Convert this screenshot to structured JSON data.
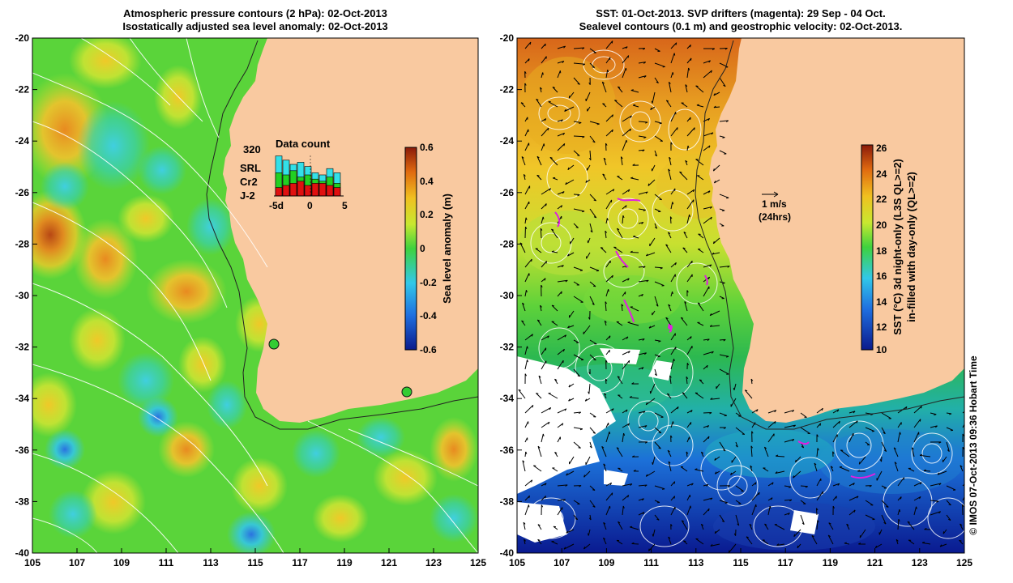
{
  "left_panel": {
    "title_line1": "Atmospheric pressure contours (2 hPa): 02-Oct-2013",
    "title_line2": "Isostatically adjusted sea level anomaly: 02-Oct-2013",
    "colorbar": {
      "label": "Sea level anomaly (m)",
      "ticks": [
        "0.6",
        "0.4",
        "0.2",
        "0",
        "-0.2",
        "-0.4",
        "-0.6"
      ]
    },
    "data_count": {
      "title": "Data count",
      "max_label": "320",
      "legend": [
        {
          "name": "SRL",
          "color": "#33e0e8"
        },
        {
          "name": "Cr2",
          "color": "#22d022"
        },
        {
          "name": "J-2",
          "color": "#e01010"
        }
      ],
      "x_ticks": [
        "-5d",
        "0",
        "5"
      ],
      "bars": [
        {
          "SRL": 0.95,
          "Cr2": 0.55,
          "J2": 0.2
        },
        {
          "SRL": 0.85,
          "Cr2": 0.5,
          "J2": 0.25
        },
        {
          "SRL": 0.75,
          "Cr2": 0.6,
          "J2": 0.3
        },
        {
          "SRL": 0.8,
          "Cr2": 0.45,
          "J2": 0.35
        },
        {
          "SRL": 0.7,
          "Cr2": 0.5,
          "J2": 0.25
        },
        {
          "SRL": 0.55,
          "Cr2": 0.4,
          "J2": 0.3
        },
        {
          "SRL": 0.5,
          "Cr2": 0.35,
          "J2": 0.3
        },
        {
          "SRL": 0.65,
          "Cr2": 0.45,
          "J2": 0.25
        },
        {
          "SRL": 0.55,
          "Cr2": 0.3,
          "J2": 0.2
        }
      ]
    }
  },
  "right_panel": {
    "title_line1": "SST: 01-Oct-2013. SVP drifters (magenta): 29 Sep - 04 Oct.",
    "title_line2": "Sealevel contours (0.1 m) and geostrophic velocity: 02-Oct-2013.",
    "colorbar": {
      "label_line1": "SST (°C) 3d night-only (L3S QL>=2)",
      "label_line2": "in-filled with day-only (QL>=2)",
      "ticks": [
        "26",
        "24",
        "22",
        "20",
        "18",
        "16",
        "14",
        "12",
        "10"
      ]
    },
    "velocity_scale": {
      "line1": "1 m/s",
      "line2": "(24hrs)"
    }
  },
  "axes": {
    "x_ticks": [
      "105",
      "107",
      "109",
      "111",
      "113",
      "115",
      "117",
      "119",
      "121",
      "123",
      "125"
    ],
    "y_ticks": [
      "-20",
      "-22",
      "-24",
      "-26",
      "-28",
      "-30",
      "-32",
      "-34",
      "-36",
      "-38",
      "-40"
    ]
  },
  "credit": "© IMOS 07-Oct-2013 09:36 Hobart Time"
}
